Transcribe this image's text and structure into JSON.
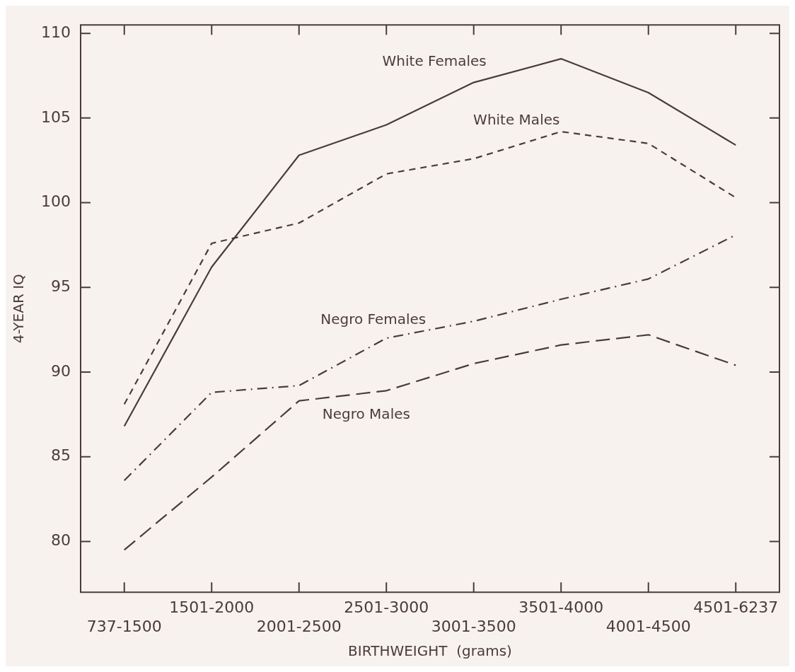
{
  "chart_data": {
    "type": "line",
    "xlabel": "BIRTHWEIGHT  (grams)",
    "ylabel": "4-YEAR IQ",
    "categories": [
      "737-1500",
      "1501-2000",
      "2001-2500",
      "2501-3000",
      "3001-3500",
      "3501-4000",
      "4001-4500",
      "4501-6237"
    ],
    "series": [
      {
        "name": "White Females",
        "color": "#4a3c3c",
        "line_style": "solid",
        "values": [
          86.8,
          96.2,
          102.8,
          104.6,
          107.1,
          108.5,
          106.5,
          103.4
        ]
      },
      {
        "name": "White Males",
        "color": "#4a3c3c",
        "line_style": "dashed",
        "values": [
          88.1,
          97.6,
          98.8,
          101.7,
          102.6,
          104.2,
          103.5,
          100.3
        ]
      },
      {
        "name": "Negro Females",
        "color": "#4a3c3c",
        "line_style": "dashdot",
        "values": [
          83.6,
          88.8,
          89.2,
          92.0,
          93.0,
          94.3,
          95.5,
          98.1
        ]
      },
      {
        "name": "Negro Males",
        "color": "#4a3c3c",
        "line_style": "longdash",
        "values": [
          79.5,
          83.8,
          88.3,
          88.9,
          90.5,
          91.6,
          92.2,
          90.4
        ]
      }
    ],
    "ylim": [
      77,
      110.5
    ],
    "yticks": [
      80,
      85,
      90,
      95,
      100,
      105,
      110
    ],
    "grid": false,
    "legend": false,
    "marker": "none"
  }
}
